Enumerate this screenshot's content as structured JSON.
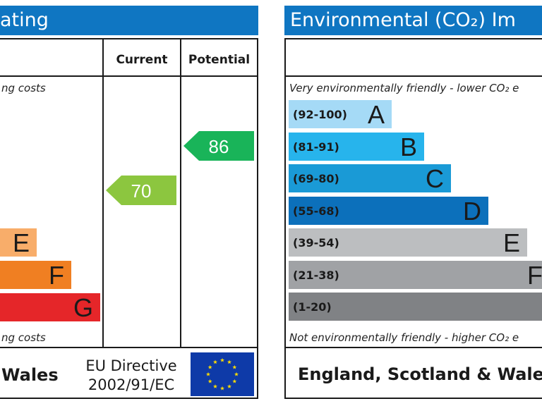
{
  "left": {
    "title": "ating",
    "columns": {
      "current": "Current",
      "potential": "Potential"
    },
    "note_top": "ng costs",
    "note_bottom": "ng costs",
    "bands": [
      {
        "letter": "E",
        "color": "#f8ad6a"
      },
      {
        "letter": "F",
        "color": "#f07f22"
      },
      {
        "letter": "G",
        "color": "#e52629"
      }
    ],
    "current": {
      "value": "70",
      "color": "#8cc63f"
    },
    "potential": {
      "value": "86",
      "color": "#19b459"
    },
    "footer": "Wales",
    "directive_line1": "EU Directive",
    "directive_line2": "2002/91/EC",
    "flag_icon": "eu-flag-icon"
  },
  "right": {
    "title": "Environmental (CO₂) Im",
    "note_top": "Very environmentally friendly - lower CO₂ e",
    "note_bottom": "Not environmentally friendly - higher CO₂ e",
    "bands": [
      {
        "range": "(92-100)",
        "letter": "A",
        "color": "#a5daf6"
      },
      {
        "range": "(81-91)",
        "letter": "B",
        "color": "#27b4ec"
      },
      {
        "range": "(69-80)",
        "letter": "C",
        "color": "#1a9ad6"
      },
      {
        "range": "(55-68)",
        "letter": "D",
        "color": "#0c70bb"
      },
      {
        "range": "(39-54)",
        "letter": "E",
        "color": "#bcbec0"
      },
      {
        "range": "(21-38)",
        "letter": "F",
        "color": "#a0a2a5"
      },
      {
        "range": "(1-20)",
        "letter": "",
        "color": "#808285"
      }
    ],
    "footer": "England, Scotland & Wales"
  }
}
